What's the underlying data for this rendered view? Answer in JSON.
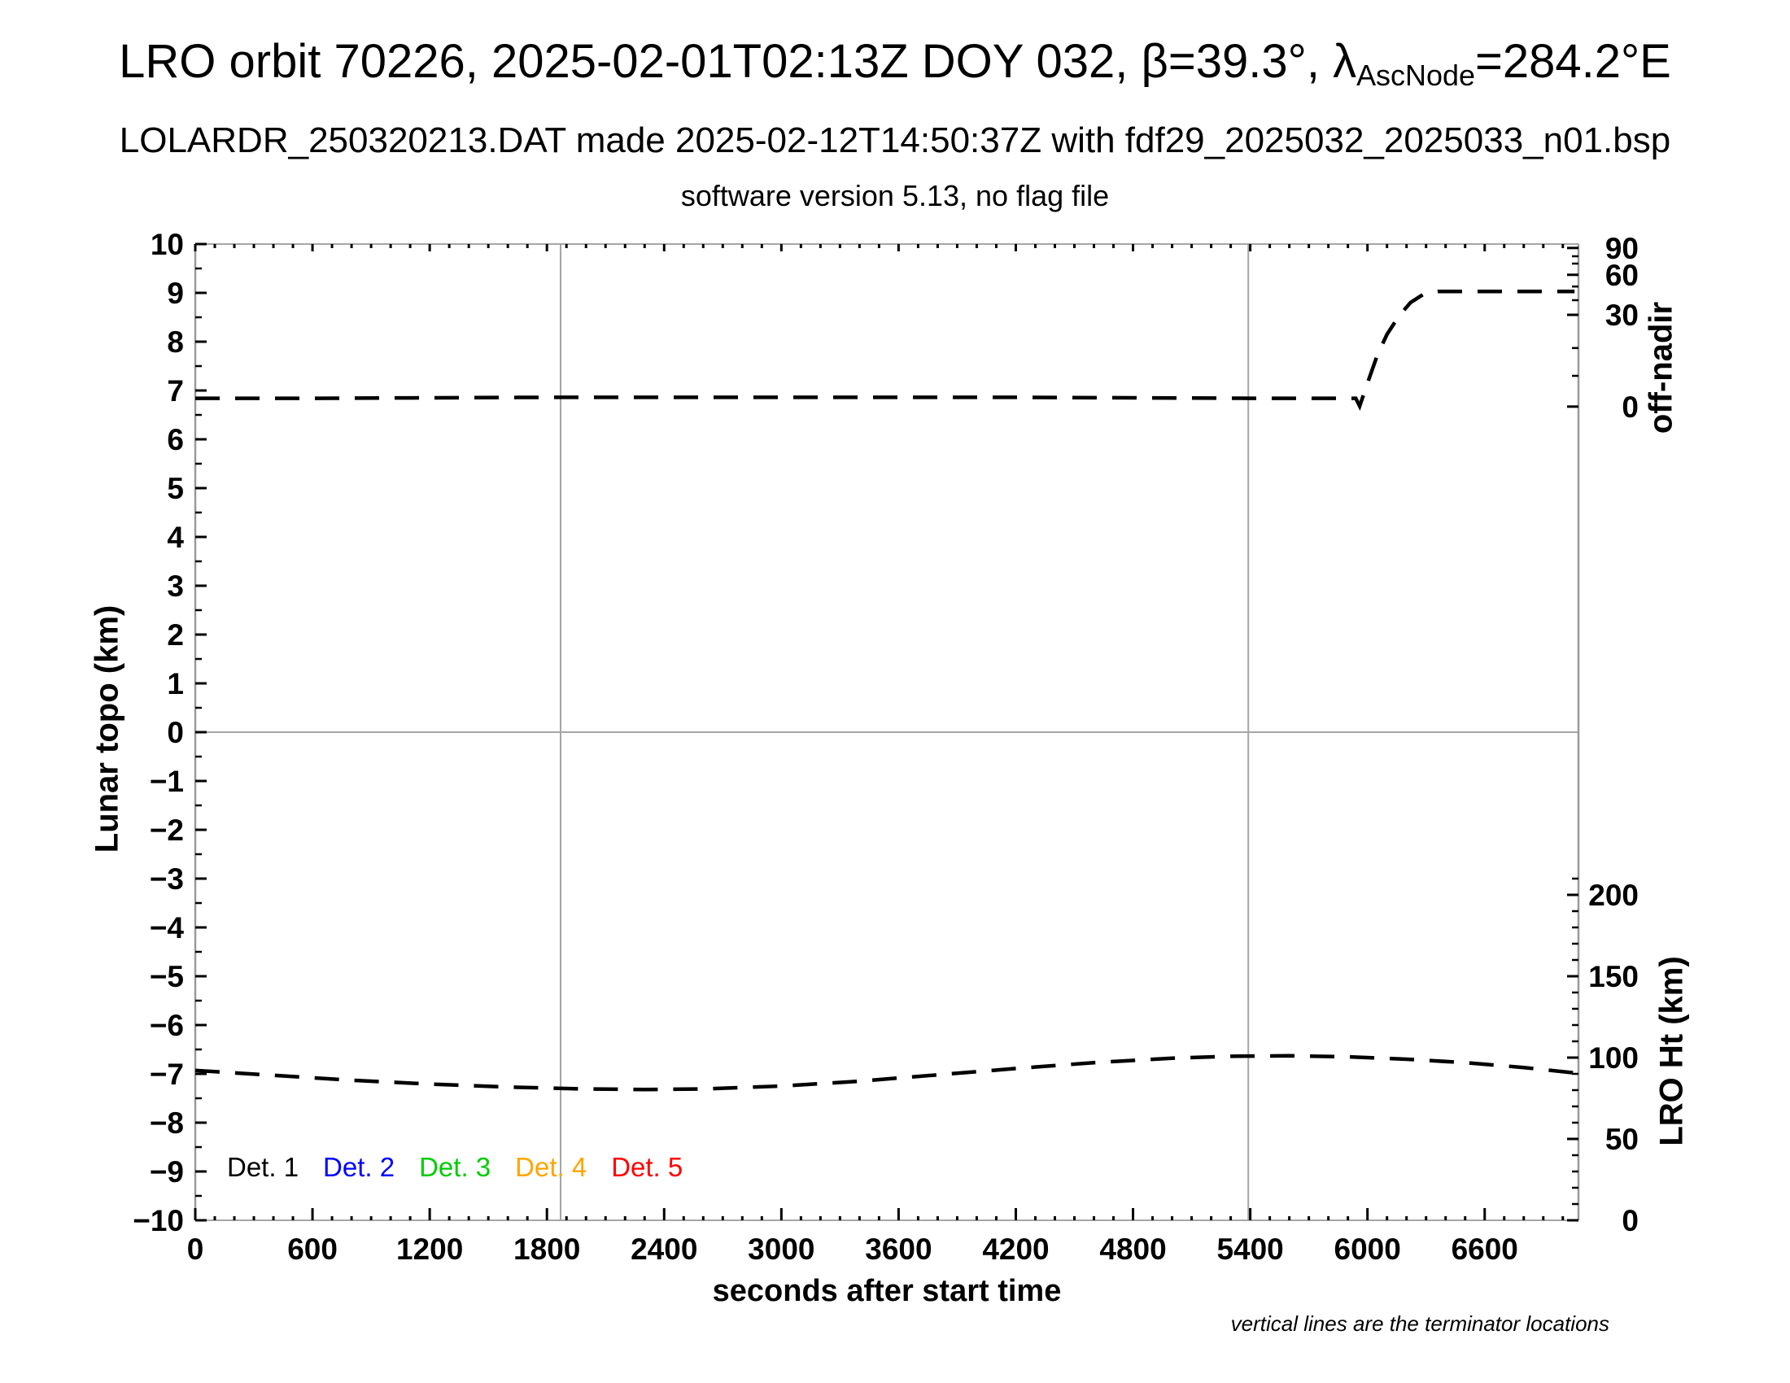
{
  "header": {
    "title_main": "LRO orbit 70226, 2025-02-01T02:13Z DOY 032, β=39.3°, ",
    "title_lambda": "λ",
    "title_lambda_sub": "AscNode",
    "title_tail": "=284.2°E",
    "subtitle": "LOLARDR_250320213.DAT made 2025-02-12T14:50:37Z with fdf29_2025032_2025033_n01.bsp",
    "software_line": "software version 5.13, no flag file"
  },
  "footnote": "vertical lines are the terminator locations",
  "chart_data": {
    "type": "line",
    "title": "LRO orbit 70226, 2025-02-01T02:13Z DOY 032, β=39.3°, λAscNode=284.2°E",
    "x_axis": {
      "label": "seconds after start time",
      "range": [
        0,
        7080
      ],
      "major_ticks": [
        0,
        600,
        1200,
        1800,
        2400,
        3000,
        3600,
        4200,
        4800,
        5400,
        6000,
        6600
      ],
      "minor_tick_step": 100
    },
    "y_left_axis": {
      "label": "Lunar topo (km)",
      "range": [
        -10,
        10
      ],
      "major_ticks": [
        -10,
        -9,
        -8,
        -7,
        -6,
        -5,
        -4,
        -3,
        -2,
        -1,
        0,
        1,
        2,
        3,
        4,
        5,
        6,
        7,
        8,
        9,
        10
      ],
      "minor_tick_step": 0.5
    },
    "y_right_offnadir": {
      "label": "off-nadir",
      "ticks": [
        {
          "value": 90,
          "topo": 9.92
        },
        {
          "value": 60,
          "topo": 9.37
        },
        {
          "value": 30,
          "topo": 8.55
        },
        {
          "value": 0,
          "topo": 6.67
        }
      ],
      "minor_ticks_topo": [
        7.3,
        7.87,
        8.85,
        9.13,
        9.6,
        9.75
      ]
    },
    "y_right_height": {
      "label": "LRO Ht (km)",
      "km_per_topo_unit": 30,
      "ticks": [
        {
          "value": 200,
          "topo": -3.333
        },
        {
          "value": 150,
          "topo": -5.0
        },
        {
          "value": 100,
          "topo": -6.667
        },
        {
          "value": 50,
          "topo": -8.333
        },
        {
          "value": 0,
          "topo": -10.0
        }
      ],
      "minor_step_km": 10,
      "minor_range_km": [
        0,
        210
      ]
    },
    "gridlines": {
      "horizontal_topo": [
        0
      ],
      "terminator_lines_s": [
        1870,
        5390
      ],
      "note": "vertical lines are the terminator locations",
      "color": "#a6a6a6"
    },
    "frame_color": "#999999",
    "series": [
      {
        "name": "off-nadir angle",
        "color": "#000000",
        "dash": [
          30,
          19
        ],
        "width": 4.5,
        "points_t_topo": [
          [
            0,
            6.84
          ],
          [
            600,
            6.84
          ],
          [
            1200,
            6.85
          ],
          [
            1800,
            6.86
          ],
          [
            2400,
            6.86
          ],
          [
            3000,
            6.86
          ],
          [
            3600,
            6.86
          ],
          [
            4200,
            6.86
          ],
          [
            4800,
            6.85
          ],
          [
            5400,
            6.84
          ],
          [
            5800,
            6.84
          ],
          [
            5940,
            6.84
          ],
          [
            5960,
            6.68
          ],
          [
            6000,
            7.15
          ],
          [
            6050,
            7.72
          ],
          [
            6100,
            8.15
          ],
          [
            6160,
            8.52
          ],
          [
            6220,
            8.8
          ],
          [
            6290,
            8.98
          ],
          [
            6360,
            9.03
          ],
          [
            6700,
            9.03
          ],
          [
            7060,
            9.03
          ]
        ]
      },
      {
        "name": "LRO height",
        "color": "#000000",
        "dash": [
          30,
          19
        ],
        "width": 4.5,
        "points_t_topo": [
          [
            0,
            -6.93
          ],
          [
            400,
            -7.03
          ],
          [
            800,
            -7.13
          ],
          [
            1200,
            -7.21
          ],
          [
            1600,
            -7.27
          ],
          [
            2000,
            -7.31
          ],
          [
            2300,
            -7.32
          ],
          [
            2600,
            -7.31
          ],
          [
            3000,
            -7.25
          ],
          [
            3400,
            -7.15
          ],
          [
            3800,
            -7.02
          ],
          [
            4200,
            -6.89
          ],
          [
            4600,
            -6.77
          ],
          [
            5000,
            -6.68
          ],
          [
            5300,
            -6.64
          ],
          [
            5600,
            -6.63
          ],
          [
            5900,
            -6.65
          ],
          [
            6200,
            -6.7
          ],
          [
            6500,
            -6.77
          ],
          [
            6800,
            -6.87
          ],
          [
            7060,
            -6.98
          ]
        ]
      }
    ],
    "legend": [
      {
        "label": "Det. 1",
        "color": "#000000"
      },
      {
        "label": "Det. 2",
        "color": "#0000ff"
      },
      {
        "label": "Det. 3",
        "color": "#00cc00"
      },
      {
        "label": "Det. 4",
        "color": "#ffa500"
      },
      {
        "label": "Det. 5",
        "color": "#ff0000"
      }
    ]
  }
}
